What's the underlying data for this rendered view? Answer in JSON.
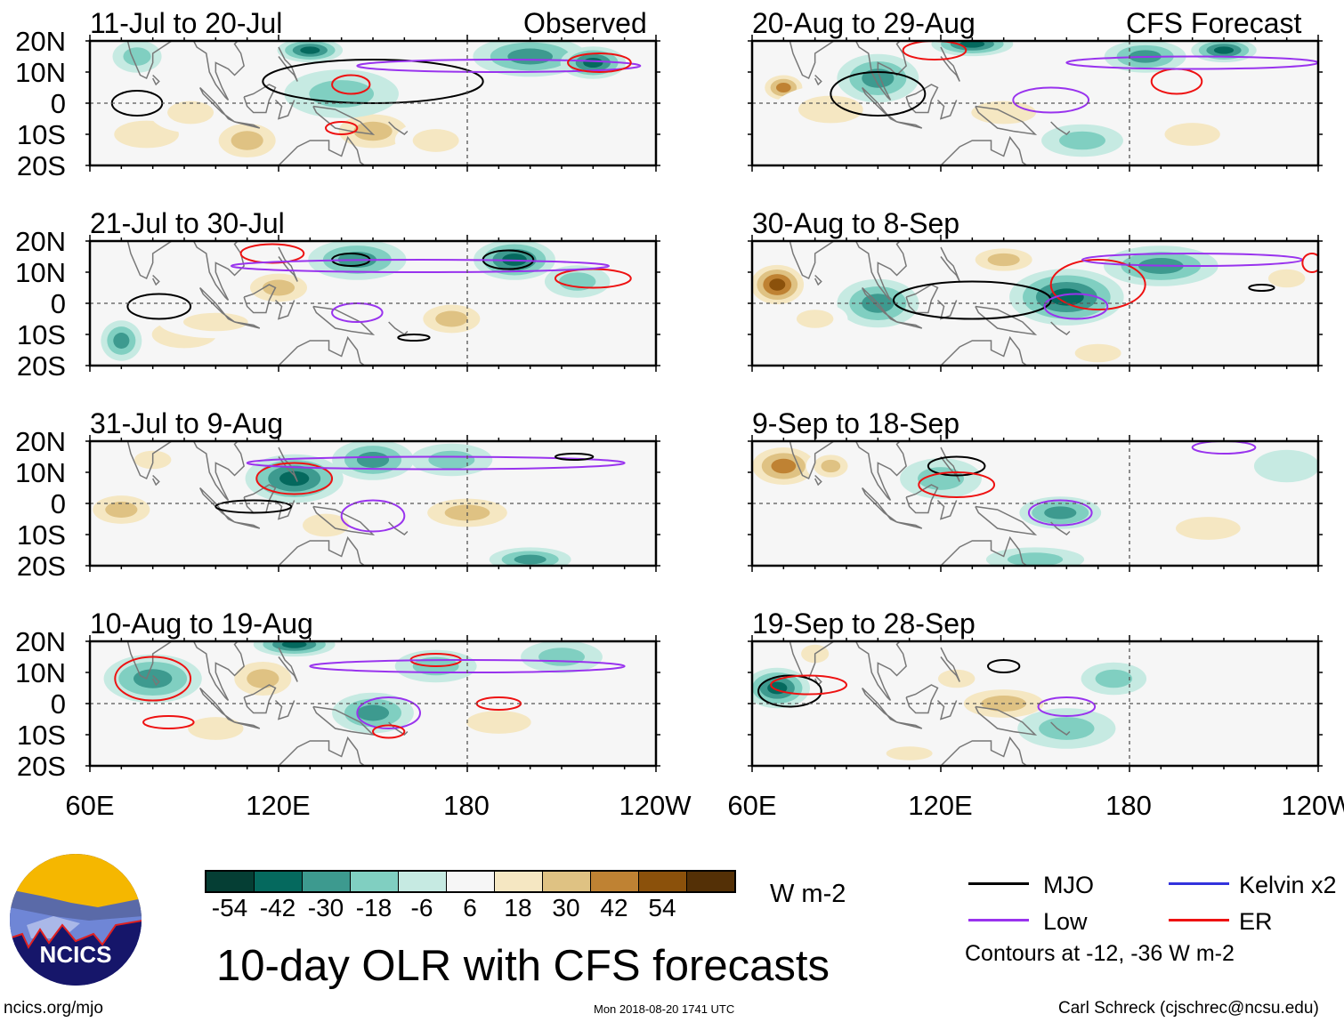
{
  "headers": {
    "observed": "Observed",
    "forecast": "CFS Forecast"
  },
  "lat_labels": [
    "20N",
    "10N",
    "0",
    "10S",
    "20S"
  ],
  "lon_labels": [
    "60E",
    "120E",
    "180",
    "120W"
  ],
  "panels": [
    {
      "title": "11-Jul to 20-Jul",
      "col": 0,
      "row": 0,
      "blobs": [
        [
          78,
          -10,
          14,
          6,
          18
        ],
        [
          110,
          -12,
          10,
          6,
          30
        ],
        [
          150,
          -9,
          12,
          6,
          30
        ],
        [
          170,
          -12,
          10,
          5,
          18
        ],
        [
          92,
          -3,
          10,
          5,
          18
        ],
        [
          140,
          3,
          14,
          6,
          -18
        ],
        [
          200,
          15,
          14,
          5,
          -30
        ],
        [
          220,
          13,
          8,
          4,
          -42
        ],
        [
          130,
          17,
          8,
          3,
          -42
        ],
        [
          75,
          15,
          6,
          4,
          -18
        ]
      ],
      "contours": [
        [
          "mjo",
          75,
          0,
          8,
          4
        ],
        [
          "mjo",
          150,
          7,
          35,
          7
        ],
        [
          "er",
          143,
          6,
          6,
          3
        ],
        [
          "er",
          140,
          -8,
          5,
          2
        ],
        [
          "low",
          190,
          12,
          45,
          2
        ],
        [
          "er",
          222,
          13,
          10,
          3
        ]
      ]
    },
    {
      "title": "21-Jul to 30-Jul",
      "col": 0,
      "row": 1,
      "blobs": [
        [
          90,
          -10,
          14,
          6,
          18
        ],
        [
          120,
          5,
          10,
          5,
          30
        ],
        [
          175,
          -5,
          10,
          5,
          30
        ],
        [
          145,
          14,
          12,
          5,
          -30
        ],
        [
          195,
          14,
          10,
          5,
          -42
        ],
        [
          70,
          -12,
          5,
          5,
          -30
        ],
        [
          100,
          -6,
          14,
          4,
          18
        ],
        [
          215,
          7,
          8,
          4,
          -18
        ]
      ],
      "contours": [
        [
          "mjo",
          82,
          -1,
          10,
          4
        ],
        [
          "mjo",
          193,
          14,
          8,
          3
        ],
        [
          "mjo",
          143,
          14,
          6,
          2
        ],
        [
          "er",
          118,
          16,
          10,
          3
        ],
        [
          "er",
          220,
          8,
          12,
          3
        ],
        [
          "low",
          165,
          12,
          60,
          2
        ],
        [
          "low",
          145,
          -3,
          8,
          3
        ],
        [
          "mjo",
          163,
          -11,
          5,
          1
        ]
      ]
    },
    {
      "title": "31-Jul to 9-Aug",
      "col": 0,
      "row": 2,
      "blobs": [
        [
          70,
          -2,
          10,
          5,
          30
        ],
        [
          125,
          8,
          12,
          6,
          -42
        ],
        [
          150,
          14,
          10,
          5,
          -30
        ],
        [
          180,
          -3,
          14,
          5,
          30
        ],
        [
          135,
          -7,
          10,
          5,
          18
        ],
        [
          80,
          14,
          8,
          4,
          18
        ],
        [
          200,
          -18,
          10,
          3,
          -30
        ],
        [
          175,
          14,
          10,
          4,
          -18
        ]
      ],
      "contours": [
        [
          "er",
          125,
          8,
          12,
          5
        ],
        [
          "mjo",
          112,
          -1,
          12,
          2
        ],
        [
          "low",
          150,
          -4,
          10,
          5
        ],
        [
          "low",
          170,
          13,
          60,
          2
        ],
        [
          "mjo",
          214,
          15,
          6,
          1
        ]
      ]
    },
    {
      "title": "10-Aug to 19-Aug",
      "col": 0,
      "row": 3,
      "blobs": [
        [
          80,
          8,
          12,
          6,
          -30
        ],
        [
          115,
          8,
          10,
          6,
          30
        ],
        [
          100,
          -8,
          12,
          5,
          18
        ],
        [
          150,
          -3,
          10,
          5,
          -30
        ],
        [
          190,
          -6,
          14,
          5,
          18
        ],
        [
          170,
          12,
          10,
          4,
          -18
        ],
        [
          210,
          15,
          10,
          4,
          -18
        ],
        [
          125,
          19,
          10,
          3,
          -42
        ]
      ],
      "contours": [
        [
          "er",
          80,
          8,
          12,
          7
        ],
        [
          "er",
          85,
          -6,
          8,
          2
        ],
        [
          "low",
          155,
          -3,
          10,
          5
        ],
        [
          "er",
          170,
          14,
          8,
          2
        ],
        [
          "er",
          190,
          0,
          7,
          2
        ],
        [
          "low",
          180,
          12,
          50,
          2
        ],
        [
          "er",
          155,
          -9,
          5,
          2
        ]
      ]
    },
    {
      "title": "20-Aug to 29-Aug",
      "col": 1,
      "row": 0,
      "blobs": [
        [
          70,
          5,
          6,
          4,
          42
        ],
        [
          85,
          -2,
          14,
          6,
          18
        ],
        [
          100,
          8,
          10,
          6,
          -30
        ],
        [
          140,
          -3,
          14,
          5,
          18
        ],
        [
          185,
          15,
          10,
          4,
          -30
        ],
        [
          210,
          17,
          8,
          3,
          -42
        ],
        [
          200,
          -10,
          12,
          5,
          18
        ],
        [
          165,
          -12,
          10,
          4,
          -18
        ],
        [
          130,
          19,
          10,
          3,
          -42
        ]
      ],
      "contours": [
        [
          "mjo",
          100,
          3,
          15,
          7
        ],
        [
          "low",
          155,
          1,
          12,
          4
        ],
        [
          "er",
          195,
          7,
          8,
          4
        ],
        [
          "er",
          118,
          17,
          10,
          3
        ],
        [
          "low",
          200,
          13,
          40,
          2
        ]
      ]
    },
    {
      "title": "30-Aug to 8-Sep",
      "col": 1,
      "row": 1,
      "blobs": [
        [
          68,
          6,
          8,
          6,
          54
        ],
        [
          140,
          14,
          10,
          4,
          30
        ],
        [
          100,
          0,
          10,
          6,
          -30
        ],
        [
          160,
          2,
          14,
          7,
          -42
        ],
        [
          190,
          12,
          14,
          5,
          -30
        ],
        [
          170,
          -16,
          10,
          4,
          18
        ],
        [
          80,
          -5,
          8,
          4,
          18
        ],
        [
          230,
          8,
          8,
          4,
          18
        ]
      ],
      "contours": [
        [
          "mjo",
          130,
          1,
          25,
          6
        ],
        [
          "er",
          170,
          6,
          15,
          8
        ],
        [
          "low",
          163,
          -1,
          10,
          4
        ],
        [
          "low",
          200,
          14,
          35,
          2
        ],
        [
          "mjo",
          222,
          5,
          4,
          1
        ],
        [
          "er",
          238,
          13,
          3,
          3
        ]
      ]
    },
    {
      "title": "9-Sep to 18-Sep",
      "col": 1,
      "row": 2,
      "blobs": [
        [
          70,
          12,
          10,
          6,
          42
        ],
        [
          85,
          12,
          6,
          4,
          30
        ],
        [
          120,
          8,
          10,
          5,
          -18
        ],
        [
          158,
          -3,
          10,
          4,
          -30
        ],
        [
          205,
          -8,
          14,
          5,
          18
        ],
        [
          150,
          -18,
          12,
          3,
          -18
        ],
        [
          230,
          12,
          8,
          4,
          -6
        ]
      ],
      "contours": [
        [
          "mjo",
          125,
          12,
          9,
          3
        ],
        [
          "er",
          125,
          6,
          12,
          4
        ],
        [
          "low",
          158,
          -3,
          10,
          4
        ],
        [
          "low",
          210,
          18,
          10,
          2
        ]
      ]
    },
    {
      "title": "19-Sep to 28-Sep",
      "col": 1,
      "row": 3,
      "blobs": [
        [
          68,
          5,
          8,
          5,
          -42
        ],
        [
          80,
          16,
          6,
          4,
          18
        ],
        [
          140,
          0,
          14,
          5,
          30
        ],
        [
          125,
          8,
          8,
          4,
          18
        ],
        [
          160,
          -8,
          12,
          5,
          -18
        ],
        [
          175,
          8,
          8,
          4,
          -18
        ],
        [
          110,
          -16,
          10,
          3,
          18
        ]
      ],
      "contours": [
        [
          "mjo",
          72,
          4,
          10,
          5
        ],
        [
          "er",
          78,
          6,
          12,
          3
        ],
        [
          "low",
          160,
          -1,
          9,
          3
        ],
        [
          "mjo",
          140,
          12,
          5,
          2
        ]
      ]
    }
  ],
  "colorbar": {
    "colors": [
      "#053e34",
      "#05695e",
      "#3d9a8f",
      "#80cfc1",
      "#c6eae2",
      "#f6f6f6",
      "#f5e7c2",
      "#dfc283",
      "#bf8233",
      "#8b510b",
      "#543006"
    ],
    "ticks": [
      "-54",
      "-42",
      "-30",
      "-18",
      "-6",
      "6",
      "18",
      "30",
      "42",
      "54"
    ],
    "units": "W m-2"
  },
  "legend": {
    "mjo": "MJO",
    "kelvin": "Kelvin x2",
    "low": "Low",
    "er": "ER",
    "contours_note": "Contours at -12, -36 W m-2",
    "colors": {
      "mjo": "#000000",
      "kelvin": "#3333dd",
      "low": "#9933ee",
      "er": "#ee1111"
    }
  },
  "title": "10-day OLR with CFS forecasts",
  "logo": "NCICS",
  "footer": {
    "url": "ncics.org/mjo",
    "timestamp": "Mon 2018-08-20 1741 UTC",
    "author": "Carl Schreck (cjschrec@ncsu.edu)"
  }
}
